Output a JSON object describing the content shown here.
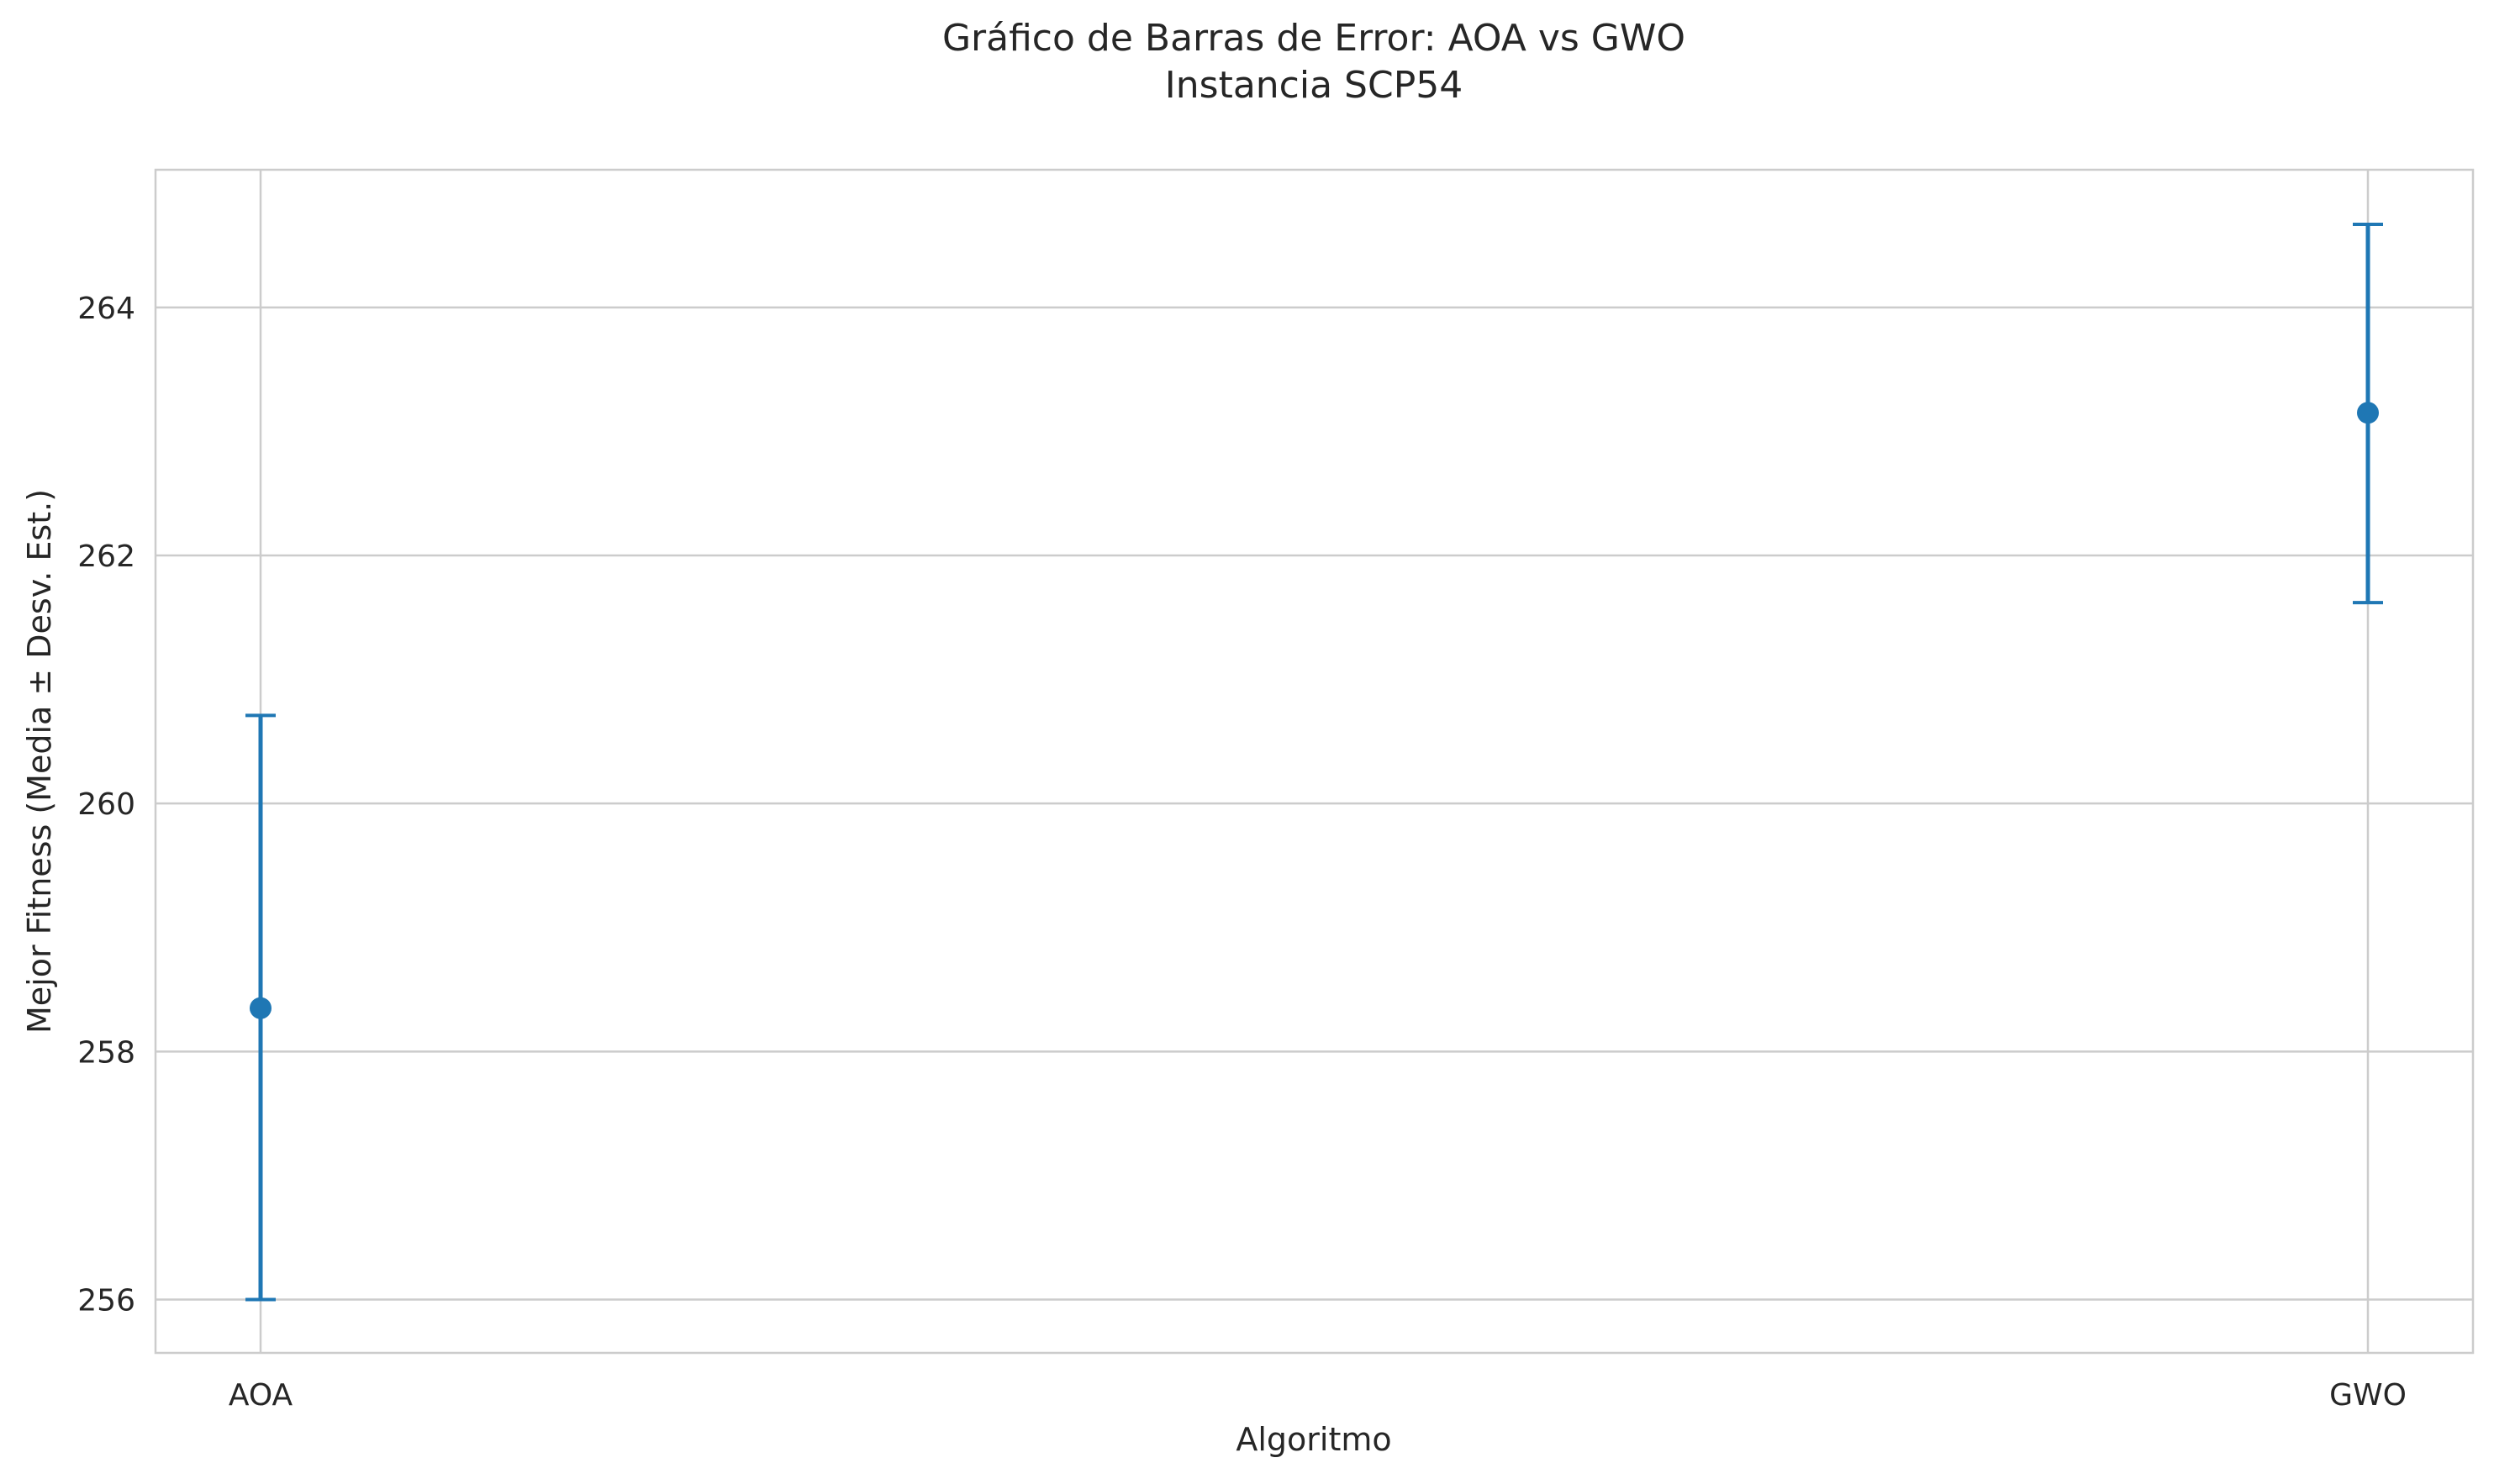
{
  "chart_data": {
    "type": "scatter",
    "title": "Gráfico de Barras de Error: AOA vs GWO",
    "subtitle": "Instancia SCP54",
    "xlabel": "Algoritmo",
    "ylabel": "Mejor Fitness (Media ± Desv. Est.)",
    "categories": [
      "AOA",
      "GWO"
    ],
    "series": [
      {
        "values": [
          258.35,
          263.15
        ],
        "error_low": [
          256.0,
          261.62
        ],
        "error_high": [
          260.71,
          264.67
        ],
        "color": "#1f77b4"
      }
    ],
    "ylim": [
      255.57,
      265.11
    ],
    "yticks": [
      256,
      258,
      260,
      262,
      264
    ],
    "grid": true,
    "legend": "none",
    "colors": {
      "series": "#1f77b4",
      "grid": "#cccccc",
      "text": "#262626"
    }
  }
}
